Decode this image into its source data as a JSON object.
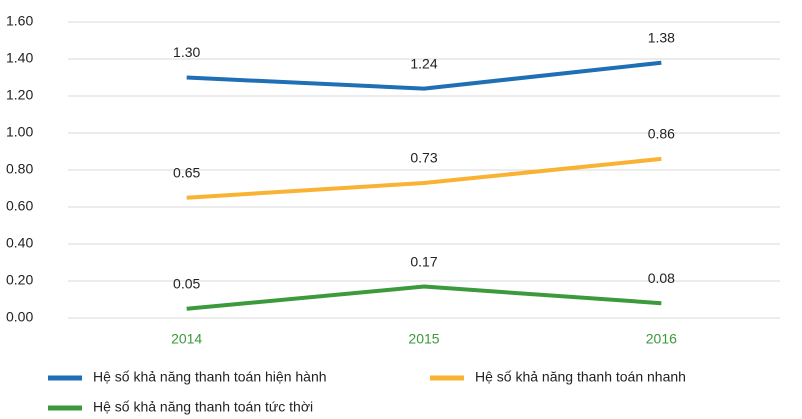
{
  "chart_data": {
    "type": "line",
    "categories": [
      "2014",
      "2015",
      "2016"
    ],
    "series": [
      {
        "name": "Hệ số khả năng thanh toán hiện hành",
        "color": "#1f6fb5",
        "values": [
          1.3,
          1.24,
          1.38
        ],
        "value_labels": [
          "1.30",
          "1.24",
          "1.38"
        ]
      },
      {
        "name": "Hệ số khả năng thanh toán nhanh",
        "color": "#f9b233",
        "values": [
          0.65,
          0.73,
          0.86
        ],
        "value_labels": [
          "0.65",
          "0.73",
          "0.86"
        ]
      },
      {
        "name": "Hệ số khả năng thanh toán tức thời",
        "color": "#3b9a3b",
        "values": [
          0.05,
          0.17,
          0.08
        ],
        "value_labels": [
          "0.05",
          "0.17",
          "0.08"
        ]
      }
    ],
    "ylim": [
      0,
      1.6
    ],
    "yticks": [
      {
        "value": 0,
        "label": "0.00"
      },
      {
        "value": 0.2,
        "label": "0.20"
      },
      {
        "value": 0.4,
        "label": "0.40"
      },
      {
        "value": 0.6,
        "label": "0.60"
      },
      {
        "value": 0.8,
        "label": "0.80"
      },
      {
        "value": 1.0,
        "label": "1.00"
      },
      {
        "value": 1.2,
        "label": "1.20"
      },
      {
        "value": 1.4,
        "label": "1.40"
      },
      {
        "value": 1.6,
        "label": "1.60"
      }
    ],
    "grid": true
  }
}
